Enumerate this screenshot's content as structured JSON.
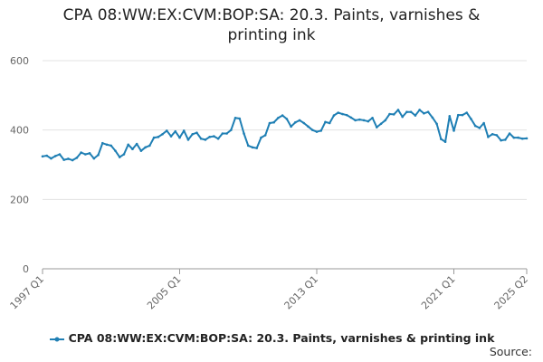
{
  "chart_data": {
    "type": "line",
    "title": "CPA 08:WW:EX:CVM:BOP:SA: 20.3. Paints, varnishes & printing ink",
    "source_label": "Source:",
    "series": [
      {
        "name": "CPA 08:WW:EX:CVM:BOP:SA: 20.3. Paints, varnishes & printing ink",
        "color": "#1f7fb4",
        "values": [
          324,
          326,
          318,
          325,
          330,
          314,
          317,
          313,
          320,
          335,
          330,
          333,
          318,
          328,
          362,
          358,
          355,
          340,
          322,
          330,
          358,
          345,
          360,
          340,
          350,
          355,
          378,
          380,
          388,
          398,
          382,
          396,
          378,
          398,
          372,
          388,
          392,
          375,
          372,
          380,
          382,
          375,
          390,
          390,
          400,
          435,
          433,
          390,
          355,
          350,
          348,
          378,
          385,
          420,
          422,
          435,
          442,
          432,
          410,
          422,
          428,
          420,
          410,
          400,
          395,
          398,
          423,
          420,
          442,
          450,
          446,
          443,
          436,
          428,
          430,
          428,
          425,
          435,
          408,
          418,
          428,
          446,
          445,
          458,
          438,
          452,
          452,
          442,
          458,
          448,
          452,
          436,
          418,
          374,
          366,
          440,
          398,
          443,
          443,
          450,
          432,
          412,
          406,
          420,
          380,
          388,
          385,
          370,
          372,
          390,
          378,
          378,
          375,
          376
        ]
      }
    ],
    "x_start": "1997 Q1",
    "x_end": "2025 Q2",
    "x_ticks": [
      {
        "label": "1997 Q1",
        "index": 0
      },
      {
        "label": "2005 Q1",
        "index": 32
      },
      {
        "label": "2013 Q1",
        "index": 64
      },
      {
        "label": "2021 Q1",
        "index": 96
      },
      {
        "label": "2025 Q2",
        "index": 113
      }
    ],
    "y_ticks": [
      0,
      200,
      400,
      600
    ],
    "ylim": [
      0,
      600
    ],
    "grid": true,
    "legend_position": "bottom"
  }
}
